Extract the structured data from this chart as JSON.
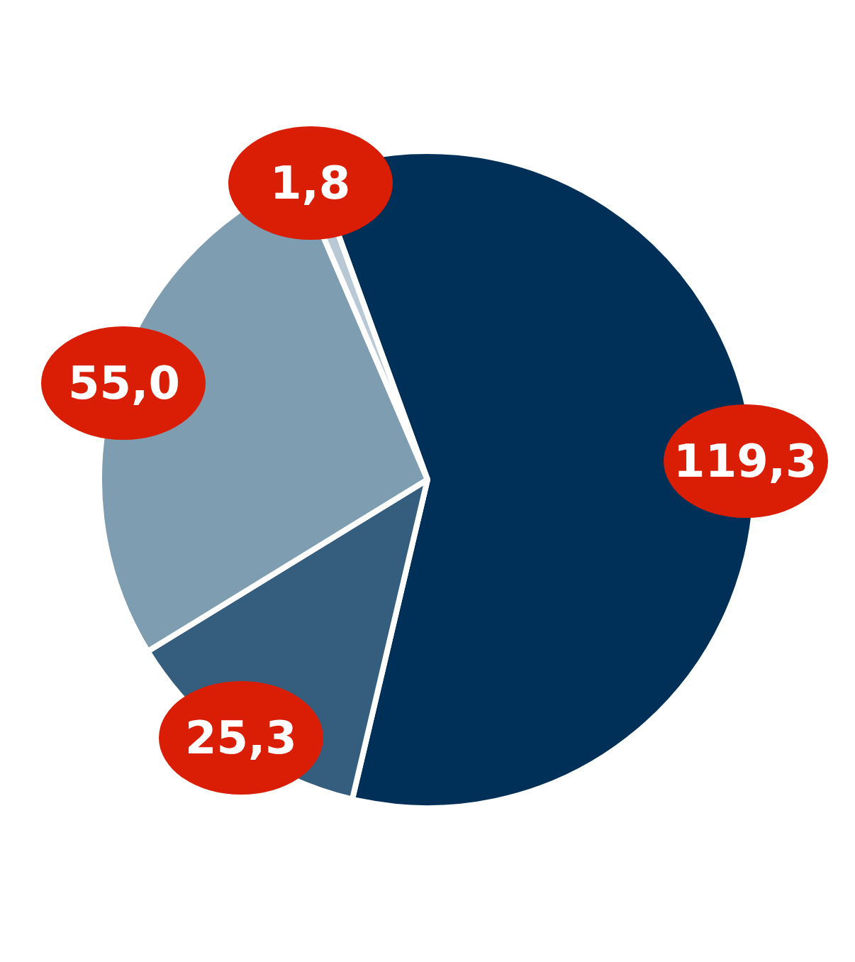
{
  "chart_data": {
    "type": "pie",
    "categories": [
      null,
      null,
      null,
      null
    ],
    "values": [
      119.3,
      25.3,
      55.0,
      1.8
    ],
    "colors": [
      "#003057",
      "#345d7e",
      "#7f9db0",
      "#b8c8d4"
    ],
    "value_labels": [
      "119,3",
      "25,3",
      "55,0",
      "1,8"
    ],
    "legend": false
  }
}
